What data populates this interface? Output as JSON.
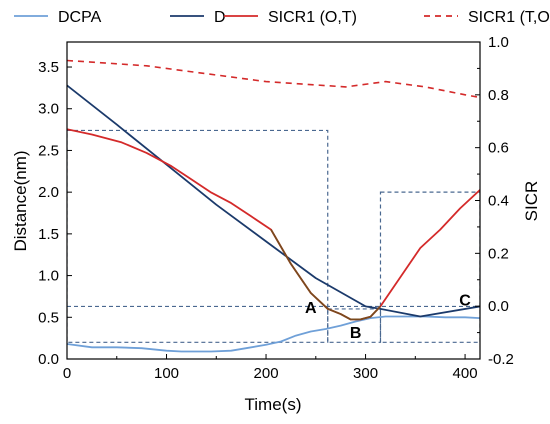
{
  "chart_data": {
    "type": "line",
    "xlabel": "Time(s)",
    "ylabel_left": "Distance(nm)",
    "ylabel_right": "SICR",
    "xlim": [
      0,
      415
    ],
    "ylim_left": [
      0,
      3.8
    ],
    "ylim_right": [
      -0.2,
      1.0
    ],
    "xticks": [
      "0",
      "100",
      "200",
      "300",
      "400"
    ],
    "yticks_left": [
      "0.0",
      "0.5",
      "1.0",
      "1.5",
      "2.0",
      "2.5",
      "3.0",
      "3.5"
    ],
    "yticks_right": [
      "-0.2",
      "0.0",
      "0.2",
      "0.4",
      "0.6",
      "0.8",
      "1.0"
    ],
    "legend_position": "top",
    "series": [
      {
        "name": "DCPA",
        "axis": "left",
        "color": "#6fa0d8",
        "style": "solid",
        "x": [
          0,
          25,
          50,
          75,
          100,
          115,
          130,
          145,
          165,
          180,
          200,
          215,
          230,
          245,
          260,
          275,
          290,
          305,
          320,
          340,
          360,
          380,
          400,
          415
        ],
        "y": [
          0.18,
          0.14,
          0.14,
          0.13,
          0.1,
          0.09,
          0.09,
          0.09,
          0.1,
          0.13,
          0.17,
          0.21,
          0.28,
          0.33,
          0.36,
          0.4,
          0.45,
          0.49,
          0.51,
          0.51,
          0.51,
          0.5,
          0.5,
          0.49
        ]
      },
      {
        "name": "D",
        "axis": "left",
        "color": "#1b3a6b",
        "style": "solid",
        "x": [
          0,
          50,
          100,
          150,
          200,
          250,
          300,
          315,
          355,
          415
        ],
        "y": [
          3.28,
          2.81,
          2.33,
          1.85,
          1.41,
          0.97,
          0.63,
          0.6,
          0.51,
          0.63
        ]
      },
      {
        "name": "SICR1 (O,T)",
        "axis": "right",
        "color": "#d42a2a",
        "style": "solid",
        "x": [
          0,
          25,
          55,
          80,
          105,
          125,
          145,
          165,
          185,
          205,
          225,
          245,
          262,
          275,
          285,
          295,
          305,
          315,
          335,
          355,
          375,
          395,
          415
        ],
        "y": [
          0.67,
          0.65,
          0.62,
          0.58,
          0.53,
          0.48,
          0.43,
          0.39,
          0.34,
          0.29,
          0.16,
          0.05,
          -0.01,
          -0.03,
          -0.05,
          -0.05,
          -0.04,
          0.0,
          0.11,
          0.22,
          0.29,
          0.37,
          0.44
        ]
      },
      {
        "name": "SICR1 (T,O)",
        "axis": "right",
        "color": "#d42a2a",
        "style": "dashed",
        "x": [
          0,
          40,
          80,
          120,
          160,
          200,
          240,
          280,
          320,
          360,
          400,
          415
        ],
        "y": [
          0.93,
          0.92,
          0.91,
          0.89,
          0.87,
          0.85,
          0.84,
          0.83,
          0.85,
          0.83,
          0.8,
          0.79
        ]
      }
    ],
    "annotations": [
      {
        "label": "A",
        "x": 245,
        "y": 0.55
      },
      {
        "label": "B",
        "x": 290,
        "y": 0.25
      },
      {
        "label": "C",
        "x": 400,
        "y": 0.64
      }
    ],
    "zoom_boxes": [
      {
        "x0": 0,
        "x1": 262,
        "y0": 0.2,
        "y1": 2.74
      },
      {
        "x0": 262,
        "x1": 315,
        "y0": 0.2,
        "y1": 0.6
      },
      {
        "x0": 315,
        "x1": 415,
        "y0": 0.2,
        "y1": 2.0
      }
    ],
    "reference_line": {
      "y": 0.63,
      "style": "dashed",
      "color": "#4a6890"
    },
    "overlap_color": "#7a4a1e"
  }
}
